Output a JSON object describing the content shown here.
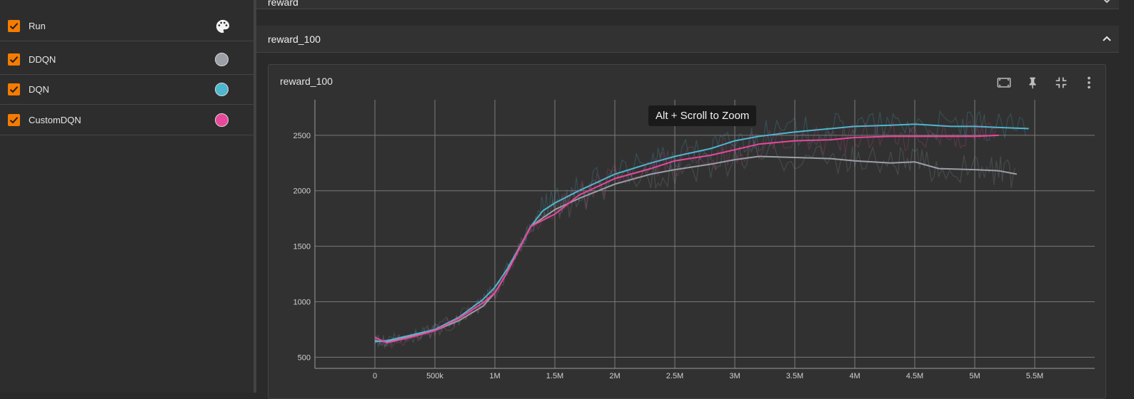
{
  "sidebar": {
    "runs": [
      {
        "label": "Run",
        "checked": true,
        "icon": "palette-icon"
      },
      {
        "label": "DDQN",
        "checked": true,
        "color": "#9aa0a6"
      },
      {
        "label": "DQN",
        "checked": true,
        "color": "#4fb6d0"
      },
      {
        "label": "CustomDQN",
        "checked": true,
        "color": "#e8489a"
      }
    ]
  },
  "groups": [
    {
      "title": "reward",
      "expanded": false
    },
    {
      "title": "reward_100",
      "expanded": true
    }
  ],
  "card": {
    "title": "reward_100",
    "actions": [
      "fit-domain-icon",
      "pin-icon",
      "collapse-icon",
      "more-vert-icon"
    ],
    "tooltip": "Alt + Scroll to Zoom"
  },
  "chart_data": {
    "type": "line",
    "title": "reward_100",
    "xlabel": "",
    "ylabel": "",
    "xlim": [
      -500000,
      6000000
    ],
    "ylim": [
      400,
      2820
    ],
    "x_ticks": [
      0,
      500000,
      1000000,
      1500000,
      2000000,
      2500000,
      3000000,
      3500000,
      4000000,
      4500000,
      5000000,
      5500000
    ],
    "x_tick_labels": [
      "0",
      "500k",
      "1M",
      "1.5M",
      "2M",
      "2.5M",
      "3M",
      "3.5M",
      "4M",
      "4.5M",
      "5M",
      "5.5M"
    ],
    "y_ticks": [
      500,
      1000,
      1500,
      2000,
      2500
    ],
    "y_tick_labels": [
      "500",
      "1000",
      "1500",
      "2000",
      "2500"
    ],
    "grid": true,
    "series": [
      {
        "name": "DDQN",
        "color": "#9aa0a6",
        "x": [
          0,
          100000,
          300000,
          500000,
          700000,
          900000,
          1000000,
          1100000,
          1200000,
          1300000,
          1500000,
          1700000,
          2000000,
          2300000,
          2500000,
          2800000,
          3000000,
          3200000,
          3500000,
          3800000,
          4000000,
          4300000,
          4500000,
          4700000,
          5000000,
          5200000,
          5350000
        ],
        "y": [
          650,
          640,
          690,
          740,
          830,
          960,
          1080,
          1260,
          1480,
          1680,
          1830,
          1930,
          2060,
          2150,
          2190,
          2240,
          2280,
          2310,
          2300,
          2290,
          2270,
          2250,
          2260,
          2200,
          2190,
          2180,
          2150
        ]
      },
      {
        "name": "DQN",
        "color": "#4fb6d0",
        "x": [
          0,
          100000,
          300000,
          500000,
          700000,
          900000,
          1000000,
          1100000,
          1200000,
          1300000,
          1400000,
          1500000,
          1700000,
          2000000,
          2300000,
          2500000,
          2800000,
          3000000,
          3200000,
          3500000,
          3800000,
          4000000,
          4300000,
          4500000,
          4800000,
          5000000,
          5200000,
          5450000
        ],
        "y": [
          640,
          650,
          700,
          750,
          860,
          1020,
          1130,
          1290,
          1480,
          1680,
          1820,
          1890,
          2000,
          2150,
          2250,
          2310,
          2380,
          2450,
          2490,
          2530,
          2560,
          2580,
          2590,
          2600,
          2580,
          2580,
          2570,
          2560
        ]
      },
      {
        "name": "CustomDQN",
        "color": "#e8489a",
        "x": [
          0,
          100000,
          300000,
          500000,
          700000,
          900000,
          1000000,
          1100000,
          1200000,
          1300000,
          1500000,
          1700000,
          2000000,
          2300000,
          2500000,
          2800000,
          3000000,
          3200000,
          3500000,
          3800000,
          4000000,
          4300000,
          4500000,
          4800000,
          5000000,
          5200000
        ],
        "y": [
          680,
          630,
          680,
          740,
          850,
          990,
          1080,
          1260,
          1470,
          1680,
          1790,
          1960,
          2110,
          2200,
          2270,
          2320,
          2370,
          2420,
          2450,
          2460,
          2480,
          2490,
          2490,
          2490,
          2490,
          2500
        ]
      }
    ]
  }
}
